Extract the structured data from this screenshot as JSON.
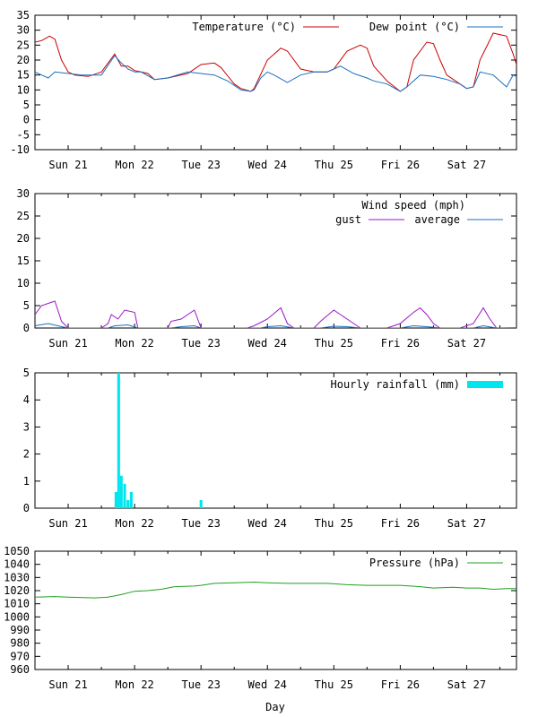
{
  "x_axis": {
    "label": "Day",
    "days": [
      "Sun 21",
      "Mon 22",
      "Tue 23",
      "Wed 24",
      "Thu 25",
      "Fri 26",
      "Sat 27"
    ],
    "domain_days": [
      -0.5,
      6.75
    ]
  },
  "chart_data": [
    {
      "type": "line",
      "id": "temperature",
      "ylim": [
        -10,
        35
      ],
      "yticks": [
        -10,
        -5,
        0,
        5,
        10,
        15,
        20,
        25,
        30,
        35
      ],
      "legend_position": "top-right",
      "series": [
        {
          "name": "Temperature (°C)",
          "color": "#cc0000",
          "points": [
            [
              -0.5,
              26
            ],
            [
              -0.4,
              26.5
            ],
            [
              -0.28,
              28
            ],
            [
              -0.2,
              27
            ],
            [
              -0.1,
              20
            ],
            [
              0.0,
              16
            ],
            [
              0.1,
              15
            ],
            [
              0.3,
              14.5
            ],
            [
              0.5,
              16
            ],
            [
              0.7,
              22
            ],
            [
              0.8,
              18
            ],
            [
              0.9,
              18
            ],
            [
              1.0,
              16.5
            ],
            [
              1.1,
              16
            ],
            [
              1.2,
              15.5
            ],
            [
              1.3,
              13.5
            ],
            [
              1.5,
              14
            ],
            [
              1.8,
              15.5
            ],
            [
              2.0,
              18.5
            ],
            [
              2.2,
              19
            ],
            [
              2.3,
              17.5
            ],
            [
              2.5,
              12
            ],
            [
              2.6,
              10.5
            ],
            [
              2.75,
              9.5
            ],
            [
              2.8,
              10.5
            ],
            [
              3.0,
              20
            ],
            [
              3.2,
              24
            ],
            [
              3.3,
              23
            ],
            [
              3.5,
              17
            ],
            [
              3.7,
              16
            ],
            [
              3.9,
              16
            ],
            [
              4.0,
              17
            ],
            [
              4.2,
              23
            ],
            [
              4.4,
              25
            ],
            [
              4.5,
              24
            ],
            [
              4.6,
              18
            ],
            [
              4.8,
              13
            ],
            [
              5.0,
              9.5
            ],
            [
              5.1,
              11
            ],
            [
              5.2,
              20
            ],
            [
              5.4,
              26
            ],
            [
              5.5,
              25.5
            ],
            [
              5.6,
              20
            ],
            [
              5.7,
              15
            ],
            [
              5.9,
              12
            ],
            [
              6.0,
              10.5
            ],
            [
              6.1,
              11
            ],
            [
              6.2,
              20
            ],
            [
              6.4,
              29
            ],
            [
              6.6,
              28
            ],
            [
              6.7,
              22
            ],
            [
              6.8,
              15
            ],
            [
              6.9,
              14
            ],
            [
              7.0,
              12
            ],
            [
              7.1,
              11.5
            ],
            [
              7.25,
              17
            ],
            [
              7.35,
              24
            ],
            [
              7.5,
              26
            ]
          ]
        },
        {
          "name": "Dew point (°C)",
          "color": "#1a6fc0",
          "points": [
            [
              -0.5,
              16
            ],
            [
              -0.4,
              15
            ],
            [
              -0.3,
              14
            ],
            [
              -0.2,
              16
            ],
            [
              0.0,
              15.5
            ],
            [
              0.2,
              15
            ],
            [
              0.5,
              15
            ],
            [
              0.7,
              21.5
            ],
            [
              0.8,
              19
            ],
            [
              0.9,
              17
            ],
            [
              1.0,
              16
            ],
            [
              1.1,
              16
            ],
            [
              1.3,
              13.5
            ],
            [
              1.5,
              14
            ],
            [
              1.8,
              16
            ],
            [
              2.0,
              15.5
            ],
            [
              2.2,
              15
            ],
            [
              2.4,
              13
            ],
            [
              2.6,
              10
            ],
            [
              2.75,
              9.5
            ],
            [
              2.8,
              10
            ],
            [
              2.9,
              14
            ],
            [
              3.0,
              16
            ],
            [
              3.1,
              15
            ],
            [
              3.3,
              12.5
            ],
            [
              3.5,
              15
            ],
            [
              3.7,
              16
            ],
            [
              3.9,
              16
            ],
            [
              4.0,
              17
            ],
            [
              4.1,
              18
            ],
            [
              4.3,
              15.5
            ],
            [
              4.5,
              14
            ],
            [
              4.6,
              13
            ],
            [
              4.8,
              12
            ],
            [
              5.0,
              9.5
            ],
            [
              5.1,
              11
            ],
            [
              5.3,
              15
            ],
            [
              5.5,
              14.5
            ],
            [
              5.7,
              13.5
            ],
            [
              5.9,
              12
            ],
            [
              6.0,
              10.5
            ],
            [
              6.1,
              11
            ],
            [
              6.2,
              16
            ],
            [
              6.4,
              15
            ],
            [
              6.6,
              11
            ],
            [
              6.7,
              15
            ],
            [
              6.9,
              13
            ],
            [
              7.0,
              12
            ],
            [
              7.1,
              11.5
            ],
            [
              7.25,
              13
            ],
            [
              7.35,
              19
            ],
            [
              7.5,
              16
            ]
          ]
        }
      ]
    },
    {
      "type": "line",
      "id": "wind",
      "title": "Wind speed (mph)",
      "ylim": [
        0,
        30
      ],
      "yticks": [
        0,
        5,
        10,
        15,
        20,
        25,
        30
      ],
      "legend_position": "top-right",
      "series": [
        {
          "name": "gust",
          "color": "#9b16c8",
          "points": [
            [
              -0.5,
              3
            ],
            [
              -0.45,
              4
            ],
            [
              -0.4,
              5
            ],
            [
              -0.3,
              5.5
            ],
            [
              -0.2,
              6
            ],
            [
              -0.1,
              1.5
            ],
            [
              0.0,
              0
            ],
            [
              0.5,
              0
            ],
            [
              0.6,
              1
            ],
            [
              0.65,
              3
            ],
            [
              0.75,
              2
            ],
            [
              0.85,
              4
            ],
            [
              1.0,
              3.5
            ],
            [
              1.05,
              0
            ],
            [
              1.5,
              0
            ],
            [
              1.55,
              1.5
            ],
            [
              1.7,
              2
            ],
            [
              1.8,
              3
            ],
            [
              1.9,
              4
            ],
            [
              2.0,
              0
            ],
            [
              2.7,
              0
            ],
            [
              2.8,
              0.5
            ],
            [
              3.0,
              2
            ],
            [
              3.2,
              4.5
            ],
            [
              3.3,
              1
            ],
            [
              3.4,
              0
            ],
            [
              3.7,
              0
            ],
            [
              3.8,
              1.5
            ],
            [
              4.0,
              4
            ],
            [
              4.2,
              2
            ],
            [
              4.3,
              1
            ],
            [
              4.4,
              0
            ],
            [
              4.8,
              0
            ],
            [
              5.0,
              1
            ],
            [
              5.2,
              3.5
            ],
            [
              5.3,
              4.5
            ],
            [
              5.4,
              3
            ],
            [
              5.5,
              1
            ],
            [
              5.6,
              0
            ],
            [
              5.9,
              0
            ],
            [
              6.1,
              1
            ],
            [
              6.25,
              4.5
            ],
            [
              6.35,
              2
            ],
            [
              6.45,
              0
            ],
            [
              7.3,
              0
            ],
            [
              7.4,
              1
            ],
            [
              7.5,
              4
            ]
          ]
        },
        {
          "name": "average",
          "color": "#1a6fc0",
          "points": [
            [
              -0.5,
              0.5
            ],
            [
              -0.3,
              1
            ],
            [
              -0.1,
              0.3
            ],
            [
              0.0,
              0
            ],
            [
              0.6,
              0
            ],
            [
              0.7,
              0.5
            ],
            [
              0.9,
              0.7
            ],
            [
              1.05,
              0
            ],
            [
              1.55,
              0
            ],
            [
              1.7,
              0.3
            ],
            [
              1.9,
              0.5
            ],
            [
              2.0,
              0
            ],
            [
              2.9,
              0
            ],
            [
              3.0,
              0.3
            ],
            [
              3.2,
              0.5
            ],
            [
              3.4,
              0
            ],
            [
              3.8,
              0
            ],
            [
              4.0,
              0.4
            ],
            [
              4.2,
              0.3
            ],
            [
              4.4,
              0
            ],
            [
              5.0,
              0
            ],
            [
              5.2,
              0.5
            ],
            [
              5.4,
              0.3
            ],
            [
              5.6,
              0
            ],
            [
              6.1,
              0
            ],
            [
              6.25,
              0.5
            ],
            [
              6.45,
              0
            ],
            [
              7.5,
              0.3
            ]
          ]
        }
      ]
    },
    {
      "type": "bar",
      "id": "rainfall",
      "ylim": [
        0,
        5
      ],
      "yticks": [
        0,
        1,
        2,
        3,
        4,
        5
      ],
      "legend_position": "top-right",
      "series": [
        {
          "name": "Hourly rainfall (mm)",
          "color": "#00e5ee",
          "bar_width_hours": 1,
          "bars": [
            [
              0.72,
              0.6
            ],
            [
              0.76,
              5.0
            ],
            [
              0.8,
              1.2
            ],
            [
              0.85,
              0.9
            ],
            [
              0.9,
              0.3
            ],
            [
              0.95,
              0.6
            ],
            [
              2.0,
              0.3
            ]
          ]
        }
      ]
    },
    {
      "type": "line",
      "id": "pressure",
      "ylim": [
        960,
        1050
      ],
      "yticks": [
        960,
        970,
        980,
        990,
        1000,
        1010,
        1020,
        1030,
        1040,
        1050
      ],
      "legend_position": "top-right",
      "series": [
        {
          "name": "Pressure (hPa)",
          "color": "#1f9f1f",
          "points": [
            [
              -0.5,
              1015
            ],
            [
              -0.2,
              1015.5
            ],
            [
              0.0,
              1015
            ],
            [
              0.4,
              1014.5
            ],
            [
              0.6,
              1015
            ],
            [
              0.8,
              1017
            ],
            [
              1.0,
              1019.5
            ],
            [
              1.2,
              1020
            ],
            [
              1.4,
              1021
            ],
            [
              1.6,
              1023
            ],
            [
              1.9,
              1023.5
            ],
            [
              2.0,
              1024
            ],
            [
              2.2,
              1025.5
            ],
            [
              2.5,
              1026
            ],
            [
              2.8,
              1026.5
            ],
            [
              3.0,
              1026
            ],
            [
              3.3,
              1025.5
            ],
            [
              3.6,
              1025.5
            ],
            [
              3.9,
              1025.5
            ],
            [
              4.2,
              1024.5
            ],
            [
              4.5,
              1024
            ],
            [
              4.8,
              1024
            ],
            [
              5.0,
              1024
            ],
            [
              5.3,
              1023
            ],
            [
              5.5,
              1022
            ],
            [
              5.8,
              1022.5
            ],
            [
              6.0,
              1022
            ],
            [
              6.2,
              1022
            ],
            [
              6.4,
              1021
            ],
            [
              6.6,
              1021.5
            ],
            [
              6.8,
              1021.5
            ],
            [
              7.0,
              1021.5
            ],
            [
              7.2,
              1021.5
            ],
            [
              7.5,
              1021.5
            ]
          ]
        }
      ]
    }
  ]
}
